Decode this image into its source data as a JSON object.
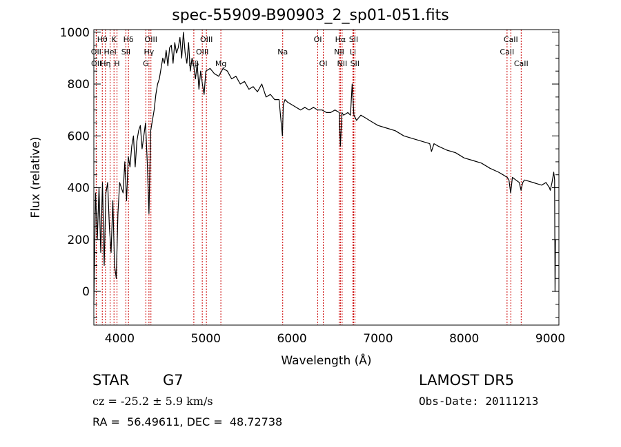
{
  "chart_data": {
    "type": "line",
    "title": "spec-55909-B90903_2_sp01-051.fits",
    "xlabel": "Wavelength (Å)",
    "ylabel": "Flux (relative)",
    "xlim": [
      3700,
      9100
    ],
    "ylim": [
      -130,
      1010
    ],
    "xticks": [
      4000,
      5000,
      6000,
      7000,
      8000,
      9000
    ],
    "yticks": [
      0,
      200,
      400,
      600,
      800,
      1000
    ],
    "grid": false,
    "series": [
      {
        "x": [
          3700,
          3720,
          3740,
          3760,
          3780,
          3800,
          3820,
          3840,
          3860,
          3880,
          3900,
          3920,
          3940,
          3960,
          3980,
          4000,
          4020,
          4040,
          4060,
          4080,
          4100,
          4120,
          4140,
          4160,
          4180,
          4200,
          4220,
          4240,
          4260,
          4280,
          4300,
          4320,
          4340,
          4360,
          4380,
          4400,
          4420,
          4440,
          4460,
          4480,
          4500,
          4520,
          4540,
          4560,
          4580,
          4600,
          4620,
          4640,
          4660,
          4680,
          4700,
          4720,
          4740,
          4760,
          4780,
          4800,
          4820,
          4840,
          4860,
          4880,
          4900,
          4920,
          4940,
          4960,
          4980,
          5000,
          5050,
          5100,
          5150,
          5200,
          5250,
          5300,
          5350,
          5400,
          5450,
          5500,
          5550,
          5600,
          5650,
          5700,
          5750,
          5800,
          5850,
          5890,
          5900,
          5920,
          5950,
          6000,
          6050,
          6100,
          6150,
          6200,
          6250,
          6300,
          6350,
          6400,
          6450,
          6500,
          6550,
          6563,
          6580,
          6600,
          6650,
          6680,
          6700,
          6720,
          6750,
          6800,
          6850,
          6900,
          6950,
          7000,
          7100,
          7200,
          7300,
          7400,
          7500,
          7600,
          7620,
          7650,
          7700,
          7800,
          7900,
          8000,
          8100,
          8200,
          8300,
          8400,
          8450,
          8500,
          8520,
          8540,
          8560,
          8600,
          8640,
          8660,
          8680,
          8700,
          8750,
          8800,
          8850,
          8900,
          8950,
          8990,
          9000,
          9020,
          9040,
          9050,
          9055,
          9060
        ],
        "y": [
          -50,
          380,
          200,
          400,
          150,
          420,
          100,
          380,
          420,
          250,
          150,
          350,
          100,
          50,
          300,
          420,
          400,
          380,
          500,
          350,
          520,
          480,
          560,
          600,
          480,
          580,
          620,
          640,
          550,
          600,
          650,
          500,
          300,
          620,
          660,
          700,
          760,
          800,
          820,
          860,
          900,
          880,
          930,
          870,
          940,
          950,
          880,
          960,
          920,
          940,
          980,
          900,
          1000,
          920,
          880,
          960,
          850,
          900,
          870,
          820,
          880,
          780,
          850,
          800,
          760,
          850,
          860,
          840,
          830,
          860,
          850,
          820,
          830,
          800,
          810,
          780,
          790,
          770,
          800,
          750,
          760,
          740,
          740,
          600,
          720,
          740,
          730,
          720,
          710,
          700,
          710,
          700,
          710,
          700,
          700,
          690,
          690,
          700,
          690,
          560,
          690,
          680,
          690,
          680,
          800,
          680,
          660,
          680,
          670,
          660,
          650,
          640,
          630,
          620,
          600,
          590,
          580,
          570,
          540,
          570,
          560,
          545,
          535,
          515,
          505,
          495,
          475,
          460,
          450,
          440,
          430,
          380,
          440,
          430,
          420,
          390,
          420,
          430,
          425,
          420,
          415,
          410,
          420,
          400,
          390,
          420,
          460,
          430,
          0,
          200
        ]
      }
    ],
    "annotations": [
      {
        "label": "Hθ",
        "wavelength": 3798
      },
      {
        "label": "K",
        "wavelength": 3934
      },
      {
        "label": "Hδ",
        "wavelength": 4102
      },
      {
        "label": "OIII",
        "wavelength": 4363
      },
      {
        "label": "OIII",
        "wavelength": 5007
      },
      {
        "label": "OI",
        "wavelength": 6300
      },
      {
        "label": "Hα",
        "wavelength": 6563
      },
      {
        "label": "SII",
        "wavelength": 6716
      },
      {
        "label": "CaII",
        "wavelength": 8542
      },
      {
        "label": "OII",
        "wavelength": 3727
      },
      {
        "label": "HeI",
        "wavelength": 3889
      },
      {
        "label": "SII",
        "wavelength": 4072
      },
      {
        "label": "Hγ",
        "wavelength": 4340
      },
      {
        "label": "OIII",
        "wavelength": 4959
      },
      {
        "label": "Na",
        "wavelength": 5893
      },
      {
        "label": "NII",
        "wavelength": 6548
      },
      {
        "label": "Li",
        "wavelength": 6708
      },
      {
        "label": "CaII",
        "wavelength": 8498
      },
      {
        "label": "OII",
        "wavelength": 3729
      },
      {
        "label": "Hη",
        "wavelength": 3835
      },
      {
        "label": "H",
        "wavelength": 3969
      },
      {
        "label": "G",
        "wavelength": 4304
      },
      {
        "label": "Hβ",
        "wavelength": 4861
      },
      {
        "label": "Mg",
        "wavelength": 5175
      },
      {
        "label": "OI",
        "wavelength": 6364
      },
      {
        "label": "NII",
        "wavelength": 6583
      },
      {
        "label": "SII",
        "wavelength": 6731
      },
      {
        "label": "CaII",
        "wavelength": 8662
      }
    ],
    "annotation_color": "#cc0000"
  },
  "info": {
    "class_label": "STAR",
    "subclass": "G7",
    "survey": "LAMOST DR5",
    "cz": "cz = -25.2 ± 5.9 km/s",
    "obs_date": "Obs-Date: 20111213",
    "coords": "RA =  56.49611, DEC =  48.72738"
  }
}
